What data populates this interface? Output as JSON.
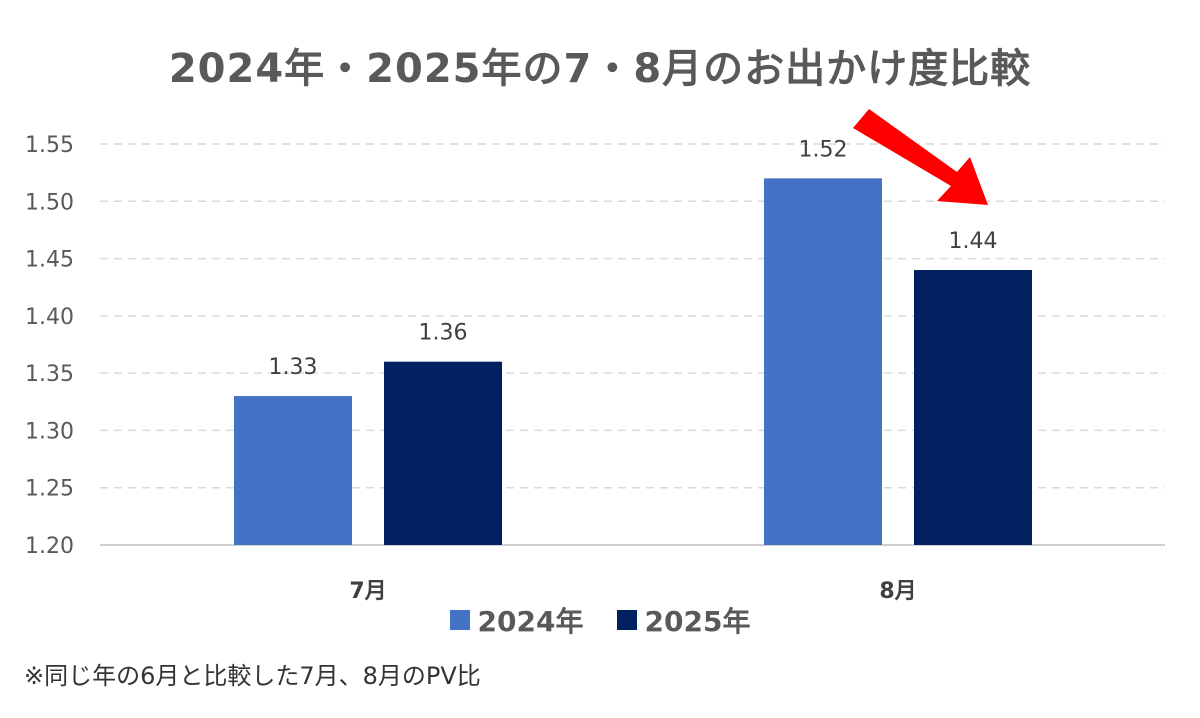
{
  "colors": {
    "series_2024": "#4472C4",
    "series_2025": "#002060",
    "arrow": "#FF0000",
    "grid": "#D9D9D9",
    "text": "#595959"
  },
  "chart_data": {
    "type": "bar",
    "title": "2024年・2025年の7・8月のお出かけ度比較",
    "categories": [
      "7月",
      "8月"
    ],
    "series": [
      {
        "name": "2024年",
        "values": [
          1.33,
          1.52
        ],
        "labels": [
          "1.33",
          "1.52"
        ]
      },
      {
        "name": "2025年",
        "values": [
          1.36,
          1.44
        ],
        "labels": [
          "1.36",
          "1.44"
        ]
      }
    ],
    "yticks": [
      "1.20",
      "1.25",
      "1.30",
      "1.35",
      "1.40",
      "1.45",
      "1.50",
      "1.55"
    ],
    "ylim": [
      1.2,
      1.55
    ],
    "xlabel": "",
    "ylabel": "",
    "grid": true,
    "legend": "bottom",
    "annotations": [
      "red arrow pointing down toward 8月 2025年 bar"
    ]
  },
  "legend": {
    "items": [
      {
        "label": "2024年"
      },
      {
        "label": "2025年"
      }
    ]
  },
  "footnote": "※同じ年の6月と比較した7月、8月のPV比"
}
